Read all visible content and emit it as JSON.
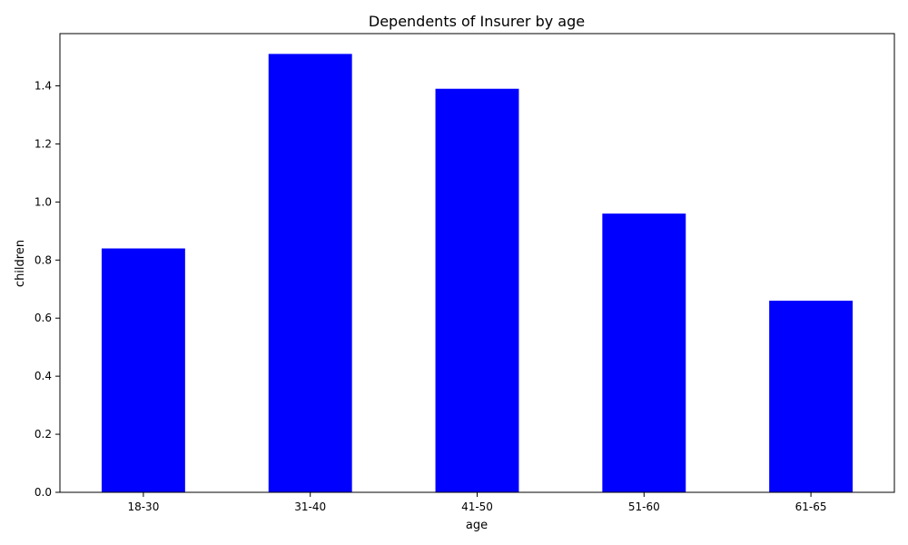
{
  "chart_data": {
    "type": "bar",
    "title": "Dependents of Insurer by age",
    "xlabel": "age",
    "ylabel": "children",
    "categories": [
      "18-30",
      "31-40",
      "41-50",
      "51-60",
      "61-65"
    ],
    "values": [
      0.84,
      1.51,
      1.39,
      0.96,
      0.66
    ],
    "ylim": [
      0,
      1.58
    ],
    "yticks": [
      0.0,
      0.2,
      0.4,
      0.6,
      0.8,
      1.0,
      1.2,
      1.4
    ],
    "ytick_labels": [
      "0.0",
      "0.2",
      "0.4",
      "0.6",
      "0.8",
      "1.0",
      "1.2",
      "1.4"
    ],
    "bar_color": "#0000ff",
    "grid": false,
    "legend": "none"
  }
}
